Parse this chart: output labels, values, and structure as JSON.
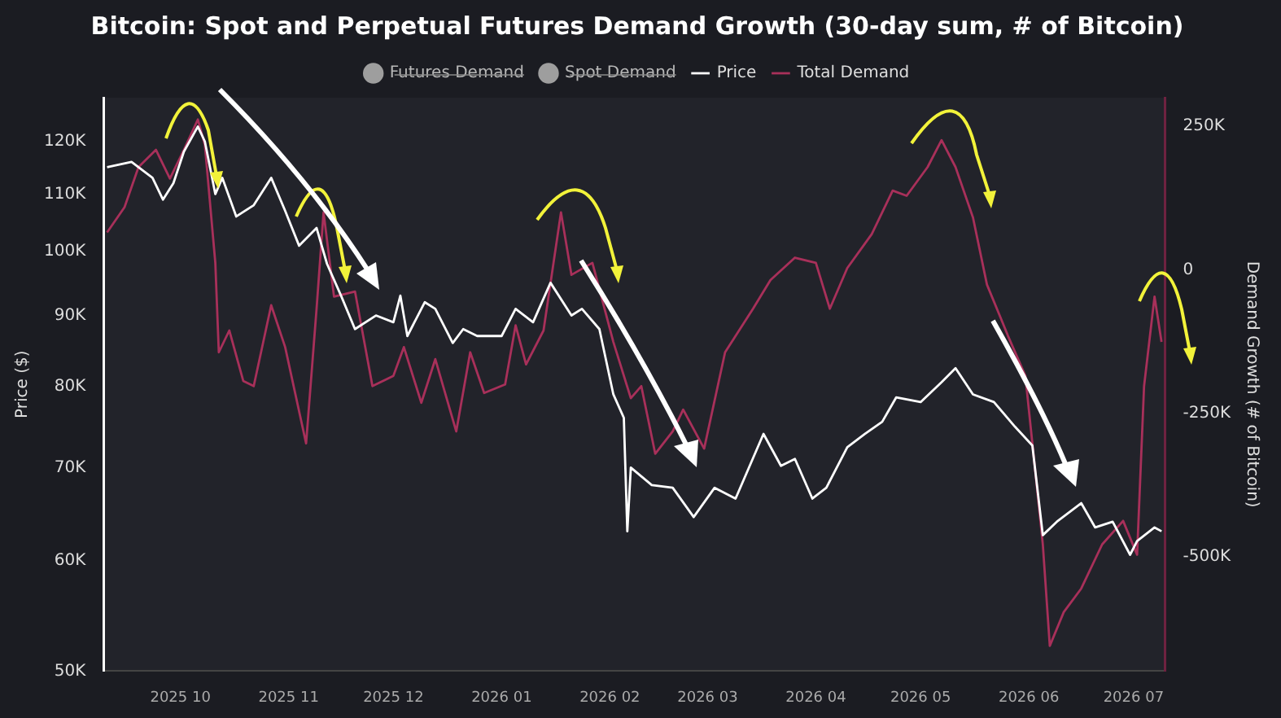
{
  "chart_data": {
    "type": "line",
    "title": "Bitcoin: Spot and Perpetual Futures Demand Growth (30-day sum, # of Bitcoin)",
    "ylabel": "Price ($)",
    "y2label": "Demand Growth (# of Bitcoin)",
    "log": "y",
    "grid": false,
    "legend": "top",
    "marker": "none",
    "line_style": "solid",
    "xlim": [
      "2025-09-09",
      "2026-07-10"
    ],
    "xticks": [
      {
        "value": "2025-10-01",
        "label": "2025 10"
      },
      {
        "value": "2025-11-01",
        "label": "2025 11"
      },
      {
        "value": "2025-12-01",
        "label": "2025 12"
      },
      {
        "value": "2026-01-01",
        "label": "2026 01"
      },
      {
        "value": "2026-02-01",
        "label": "2026 02"
      },
      {
        "value": "2026-03-01",
        "label": "2026 03"
      },
      {
        "value": "2026-04-01",
        "label": "2026 04"
      },
      {
        "value": "2026-05-01",
        "label": "2026 05"
      },
      {
        "value": "2026-06-01",
        "label": "2026 06"
      },
      {
        "value": "2026-07-01",
        "label": "2026 07"
      }
    ],
    "ylim": [
      50000,
      129000
    ],
    "yticks": [
      {
        "value": 50000,
        "label": "50K"
      },
      {
        "value": 60000,
        "label": "60K"
      },
      {
        "value": 70000,
        "label": "70K"
      },
      {
        "value": 80000,
        "label": "80K"
      },
      {
        "value": 90000,
        "label": "90K"
      },
      {
        "value": 100000,
        "label": "100K"
      },
      {
        "value": 110000,
        "label": "110K"
      },
      {
        "value": 120000,
        "label": "120K"
      }
    ],
    "y2lim": [
      -700000,
      300000
    ],
    "y2ticks": [
      {
        "value": -500000,
        "label": "-500K"
      },
      {
        "value": -250000,
        "label": "-250K"
      },
      0,
      {
        "value": 250000,
        "label": "250K"
      }
    ],
    "series": [
      {
        "name": "Futures Demand",
        "color": "#9e9e9e",
        "axis": "y2",
        "marker": "circle"
      },
      {
        "name": "Spot Demand",
        "color": "#9e9e9e",
        "axis": "y2",
        "marker": "circle"
      },
      {
        "name": "Price",
        "color": "#ffffff",
        "axis": "y",
        "x": [
          "2025-09-10",
          "2025-09-17",
          "2025-09-23",
          "2025-09-26",
          "2025-09-29",
          "2025-10-02",
          "2025-10-06",
          "2025-10-08",
          "2025-10-11",
          "2025-10-13",
          "2025-10-17",
          "2025-10-22",
          "2025-10-27",
          "2025-10-31",
          "2025-11-04",
          "2025-11-09",
          "2025-11-12",
          "2025-11-16",
          "2025-11-20",
          "2025-11-26",
          "2025-12-01",
          "2025-12-03",
          "2025-12-05",
          "2025-12-10",
          "2025-12-13",
          "2025-12-18",
          "2025-12-21",
          "2025-12-25",
          "2026-01-01",
          "2026-01-05",
          "2026-01-10",
          "2026-01-15",
          "2026-01-21",
          "2026-01-24",
          "2026-01-29",
          "2026-02-02",
          "2026-02-05",
          "2026-02-06",
          "2026-02-07",
          "2026-02-13",
          "2026-02-19",
          "2026-02-25",
          "2026-03-03",
          "2026-03-09",
          "2026-03-17",
          "2026-03-22",
          "2026-03-26",
          "2026-03-31",
          "2026-04-04",
          "2026-04-10",
          "2026-04-15",
          "2026-04-20",
          "2026-04-24",
          "2026-05-01",
          "2026-05-07",
          "2026-05-11",
          "2026-05-16",
          "2026-05-22",
          "2026-05-28",
          "2026-06-02",
          "2026-06-05",
          "2026-06-09",
          "2026-06-16",
          "2026-06-20",
          "2026-06-25",
          "2026-06-30",
          "2026-07-02",
          "2026-07-07",
          "2026-07-09"
        ],
        "values": [
          115000,
          116000,
          113000,
          109000,
          112000,
          118000,
          123000,
          120000,
          110000,
          113000,
          106000,
          108000,
          113000,
          107000,
          101000,
          104000,
          98000,
          93000,
          88000,
          90000,
          89000,
          93000,
          87000,
          92000,
          91000,
          86000,
          88000,
          87000,
          87000,
          91000,
          89000,
          95000,
          90000,
          91000,
          88000,
          79000,
          76000,
          63000,
          70000,
          68000,
          67700,
          64500,
          67700,
          66500,
          74000,
          70200,
          71000,
          66500,
          67700,
          72400,
          74000,
          75500,
          78600,
          78000,
          80600,
          82500,
          79000,
          78000,
          74900,
          72600,
          62600,
          64000,
          66000,
          63400,
          64000,
          60600,
          62000,
          63400,
          63000
        ]
      },
      {
        "name": "Total Demand",
        "color": "#a8305a",
        "axis": "y2",
        "x": [
          "2025-09-10",
          "2025-09-15",
          "2025-09-19",
          "2025-09-24",
          "2025-09-28",
          "2025-10-02",
          "2025-10-06",
          "2025-10-08",
          "2025-10-11",
          "2025-10-12",
          "2025-10-15",
          "2025-10-19",
          "2025-10-22",
          "2025-10-27",
          "2025-10-31",
          "2025-11-06",
          "2025-11-09",
          "2025-11-11",
          "2025-11-14",
          "2025-11-20",
          "2025-11-25",
          "2025-12-01",
          "2025-12-04",
          "2025-12-09",
          "2025-12-13",
          "2025-12-19",
          "2025-12-23",
          "2025-12-27",
          "2026-01-02",
          "2026-01-05",
          "2026-01-08",
          "2026-01-13",
          "2026-01-18",
          "2026-01-21",
          "2026-01-27",
          "2026-02-02",
          "2026-02-07",
          "2026-02-10",
          "2026-02-14",
          "2026-02-19",
          "2026-02-22",
          "2026-02-28",
          "2026-03-06",
          "2026-03-14",
          "2026-03-19",
          "2026-03-26",
          "2026-04-01",
          "2026-04-05",
          "2026-04-10",
          "2026-04-17",
          "2026-04-23",
          "2026-04-27",
          "2026-05-03",
          "2026-05-07",
          "2026-05-11",
          "2026-05-16",
          "2026-05-20",
          "2026-05-24",
          "2026-05-26",
          "2026-05-31",
          "2026-06-05",
          "2026-06-07",
          "2026-06-11",
          "2026-06-16",
          "2026-06-22",
          "2026-06-28",
          "2026-07-02",
          "2026-07-04",
          "2026-07-07",
          "2026-07-09"
        ],
        "values": [
          65000,
          109000,
          179000,
          209000,
          159000,
          209000,
          262000,
          218000,
          12000,
          -144000,
          -106000,
          -194000,
          -203000,
          -62000,
          -135000,
          -303000,
          -68000,
          100000,
          -47000,
          -38000,
          -203000,
          -185000,
          -135000,
          -232000,
          -156000,
          -282000,
          -144000,
          -215000,
          -200000,
          -97000,
          -165000,
          -106000,
          100000,
          -9000,
          12000,
          -126000,
          -224000,
          -203000,
          -321000,
          -282000,
          -244000,
          -312000,
          -144000,
          -68000,
          -18000,
          21000,
          12000,
          -68000,
          3000,
          62000,
          138000,
          129000,
          179000,
          226000,
          179000,
          91000,
          -26000,
          -85000,
          -115000,
          -185000,
          -479000,
          -656000,
          -597000,
          -556000,
          -479000,
          -438000,
          -497000,
          -203000,
          -47000,
          -126000
        ]
      }
    ]
  }
}
